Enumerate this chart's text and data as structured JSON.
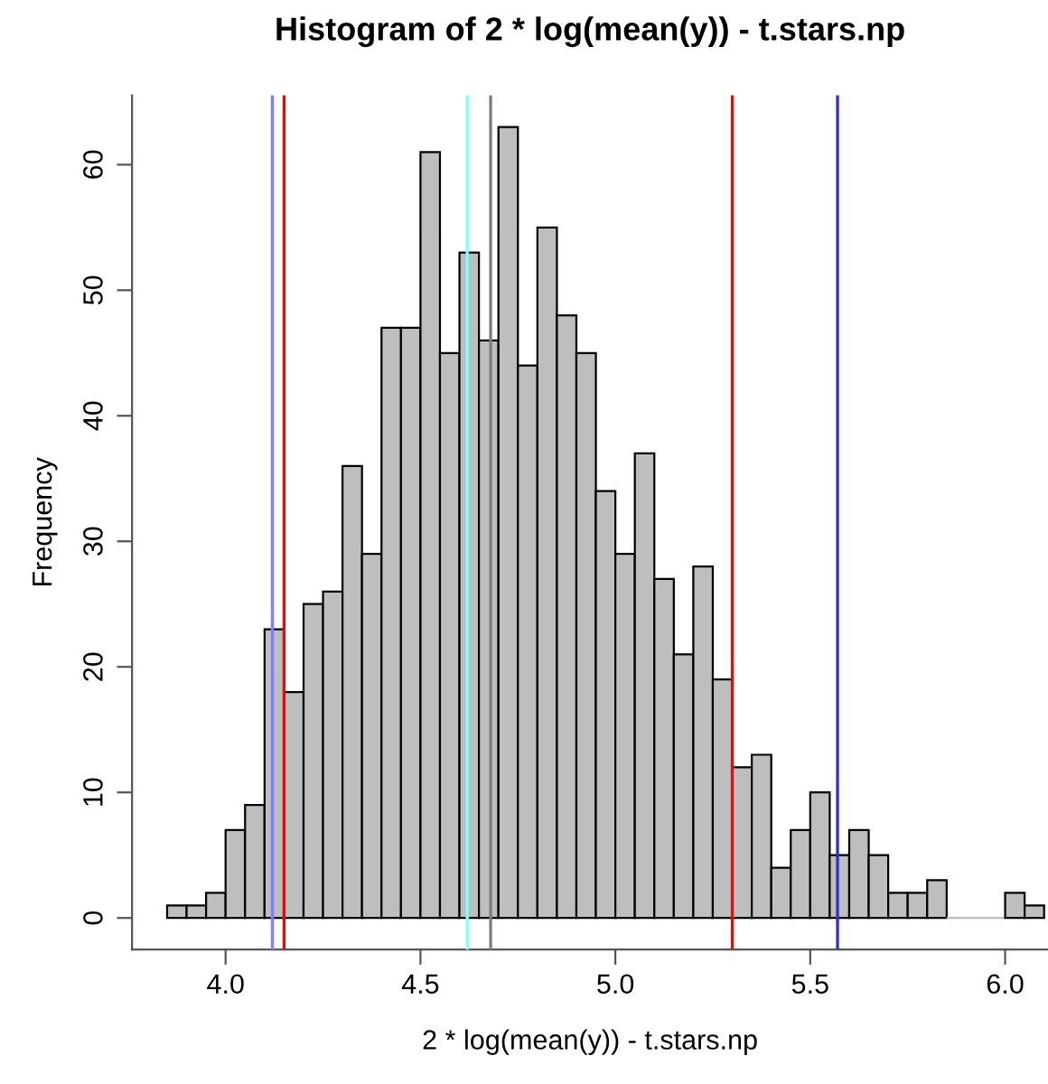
{
  "chart_data": {
    "type": "histogram",
    "title": "Histogram of 2 * log(mean(y)) - t.stars.np",
    "xlabel": "2 * log(mean(y)) - t.stars.np",
    "ylabel": "Frequency",
    "bins": [
      3.85,
      3.9,
      3.95,
      4.0,
      4.05,
      4.1,
      4.15,
      4.2,
      4.25,
      4.3,
      4.35,
      4.4,
      4.45,
      4.5,
      4.55,
      4.6,
      4.65,
      4.7,
      4.75,
      4.8,
      4.85,
      4.9,
      4.95,
      5.0,
      5.05,
      5.1,
      5.15,
      5.2,
      5.25,
      5.3,
      5.35,
      5.4,
      5.45,
      5.5,
      5.55,
      5.6,
      5.65,
      5.7,
      5.75,
      5.8,
      5.85,
      5.9,
      5.95,
      6.0,
      6.05,
      6.1
    ],
    "values": [
      1,
      1,
      2,
      7,
      9,
      23,
      18,
      25,
      26,
      36,
      29,
      47,
      47,
      61,
      45,
      53,
      46,
      63,
      44,
      55,
      48,
      45,
      34,
      29,
      37,
      27,
      21,
      28,
      19,
      12,
      13,
      4,
      7,
      10,
      5,
      7,
      5,
      2,
      2,
      3,
      0,
      0,
      0,
      2,
      1
    ],
    "color": "#bebebe",
    "xlim": [
      3.76,
      6.11
    ],
    "ylim": [
      -2.52,
      65.52
    ],
    "xticks": [
      {
        "value": 4.0,
        "label": "4.0"
      },
      {
        "value": 4.5,
        "label": "4.5"
      },
      {
        "value": 5.0,
        "label": "5.0"
      },
      {
        "value": 5.5,
        "label": "5.5"
      },
      {
        "value": 6.0,
        "label": "6.0"
      }
    ],
    "yticks": [
      0,
      10,
      20,
      30,
      40,
      50,
      60
    ],
    "grid": false,
    "ref_lines": [
      {
        "axis": "x",
        "value": 4.12,
        "color": "#7f7fff"
      },
      {
        "axis": "x",
        "value": 4.15,
        "color": "#ff0000"
      },
      {
        "axis": "x",
        "value": 4.62,
        "color": "#7fffff"
      },
      {
        "axis": "x",
        "value": 4.68,
        "color": "#7f7f7f"
      },
      {
        "axis": "x",
        "value": 5.3,
        "color": "#ff0000"
      },
      {
        "axis": "x",
        "value": 5.57,
        "color": "#3030d0"
      }
    ]
  }
}
